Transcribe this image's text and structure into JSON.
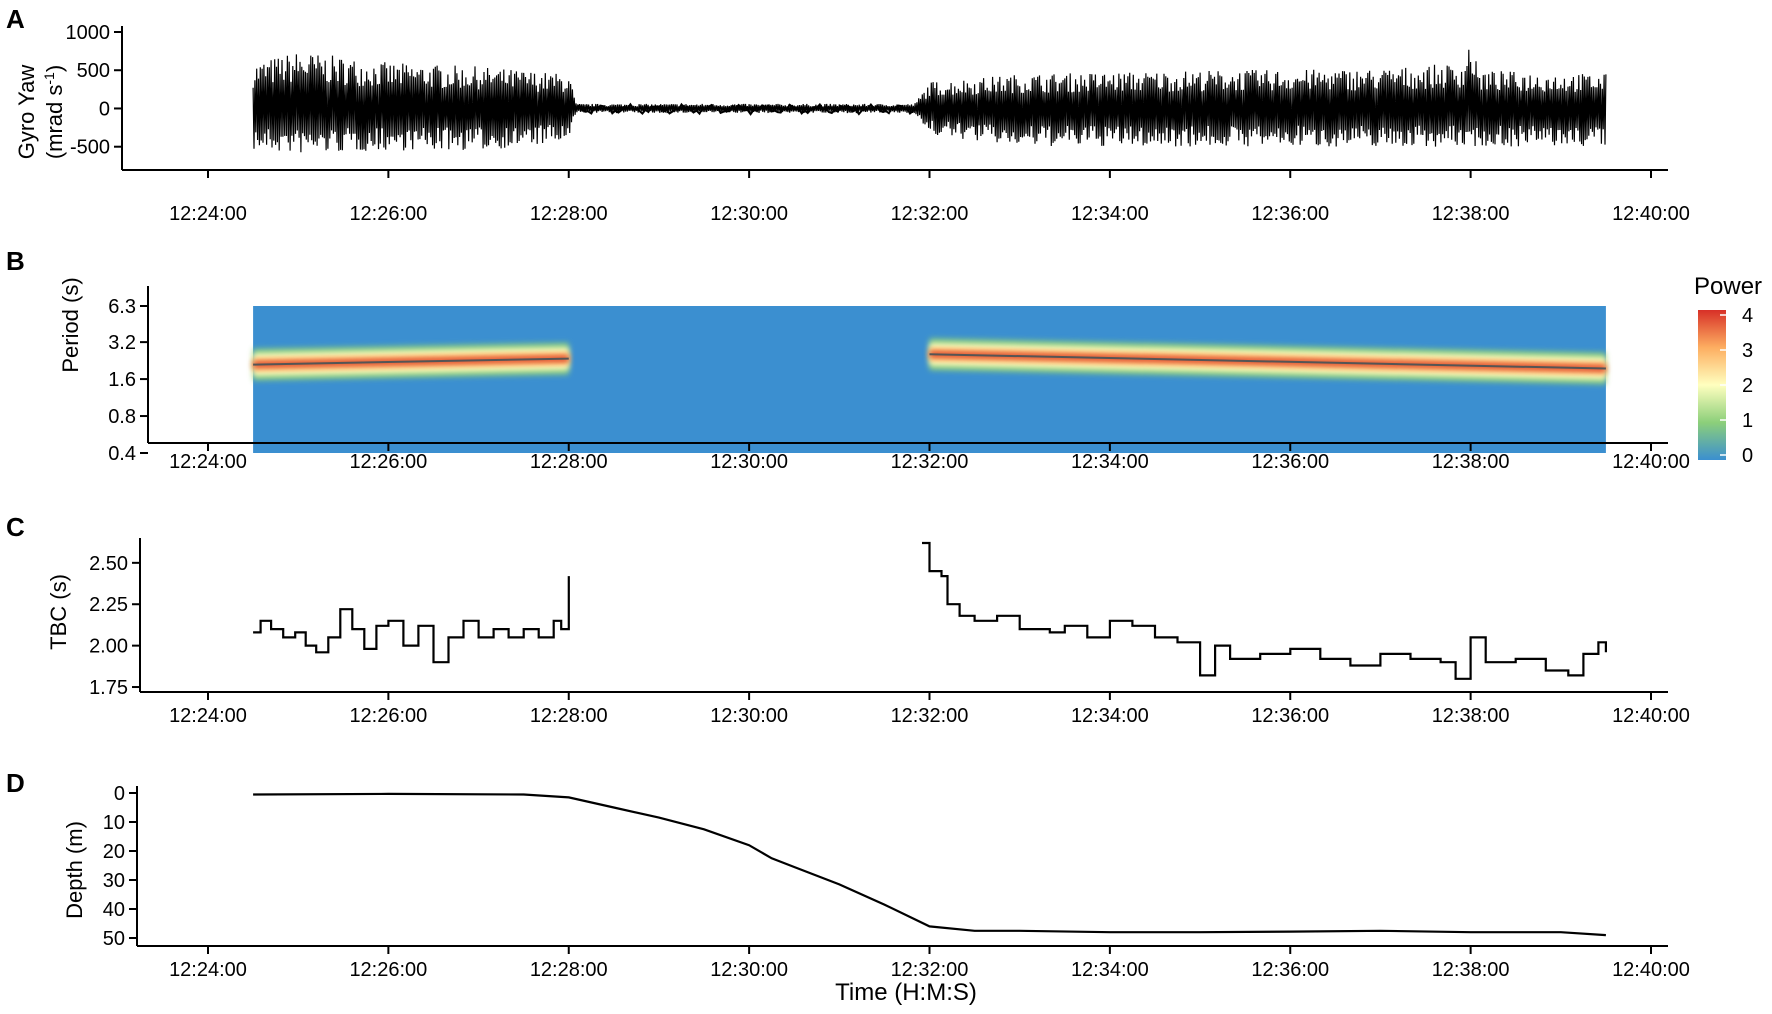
{
  "chart_data": [
    {
      "panel": "A",
      "type": "line",
      "ylabel_line1": "Gyro Yaw",
      "ylabel_line2_base": "(mrad s",
      "ylabel_line2_sup": "-1",
      "ylabel_line2_end": ")",
      "ylim": [
        -700,
        1000
      ],
      "y_ticks": [
        1000,
        500,
        0,
        -500
      ],
      "x_ticks": [
        "12:24:00",
        "12:26:00",
        "12:28:00",
        "12:30:00",
        "12:32:00",
        "12:34:00",
        "12:36:00",
        "12:38:00",
        "12:40:00"
      ],
      "x_range": [
        "12:24:00",
        "12:40:00"
      ],
      "data_start": "12:24:30",
      "data_end": "12:39:30",
      "envelope": [
        {
          "x": "12:24:30",
          "y_min": -550,
          "y_max": 600
        },
        {
          "x": "12:25:00",
          "y_min": -600,
          "y_max": 750
        },
        {
          "x": "12:26:00",
          "y_min": -550,
          "y_max": 600
        },
        {
          "x": "12:27:00",
          "y_min": -550,
          "y_max": 550
        },
        {
          "x": "12:28:00",
          "y_min": -450,
          "y_max": 450
        },
        {
          "x": "12:28:05",
          "y_min": -60,
          "y_max": 60
        },
        {
          "x": "12:31:50",
          "y_min": -60,
          "y_max": 60
        },
        {
          "x": "12:32:00",
          "y_min": -350,
          "y_max": 350
        },
        {
          "x": "12:33:00",
          "y_min": -500,
          "y_max": 450
        },
        {
          "x": "12:35:00",
          "y_min": -500,
          "y_max": 500
        },
        {
          "x": "12:37:00",
          "y_min": -500,
          "y_max": 520
        },
        {
          "x": "12:37:55",
          "y_min": -500,
          "y_max": 600
        },
        {
          "x": "12:38:00",
          "y_min": -500,
          "y_max": 950
        },
        {
          "x": "12:38:05",
          "y_min": -500,
          "y_max": 500
        },
        {
          "x": "12:39:30",
          "y_min": -500,
          "y_max": 450
        }
      ]
    },
    {
      "panel": "B",
      "type": "heatmap",
      "ylabel": "Period (s)",
      "y_scale": "log2",
      "y_ticks": [
        "6.3",
        "3.2",
        "1.6",
        "0.8",
        "0.4"
      ],
      "ylim": [
        0.4,
        6.3
      ],
      "x_ticks": [
        "12:24:00",
        "12:26:00",
        "12:28:00",
        "12:30:00",
        "12:32:00",
        "12:34:00",
        "12:36:00",
        "12:38:00",
        "12:40:00"
      ],
      "x_range": [
        "12:24:00",
        "12:40:00"
      ],
      "data_start": "12:24:30",
      "data_end": "12:39:30",
      "legend_title": "Power",
      "legend_ticks": [
        "4",
        "3",
        "2",
        "1",
        "0"
      ],
      "legend_placement": "right",
      "colorscale": [
        "#3b8fd0",
        "#8ccf7a",
        "#ffffbf",
        "#fdae61",
        "#d73027"
      ],
      "background_color": "#3b8fd0",
      "ridge_segments": [
        {
          "start": "12:24:30",
          "end": "12:28:00",
          "period_start": 2.1,
          "period_end": 2.35
        },
        {
          "start": "12:32:00",
          "end": "12:39:30",
          "period_start": 2.55,
          "period_end": 1.95
        }
      ]
    },
    {
      "panel": "C",
      "type": "line",
      "ylabel": "TBC (s)",
      "y_ticks": [
        "2.50",
        "2.25",
        "2.00",
        "1.75"
      ],
      "ylim": [
        1.72,
        2.65
      ],
      "x_ticks": [
        "12:24:00",
        "12:26:00",
        "12:28:00",
        "12:30:00",
        "12:32:00",
        "12:34:00",
        "12:36:00",
        "12:38:00",
        "12:40:00"
      ],
      "x_range": [
        "12:24:00",
        "12:40:00"
      ],
      "series": [
        {
          "segment": 1,
          "points": [
            [
              "12:24:30",
              2.08
            ],
            [
              "12:24:35",
              2.15
            ],
            [
              "12:24:42",
              2.1
            ],
            [
              "12:24:50",
              2.05
            ],
            [
              "12:24:58",
              2.08
            ],
            [
              "12:25:05",
              2.0
            ],
            [
              "12:25:12",
              1.96
            ],
            [
              "12:25:20",
              2.05
            ],
            [
              "12:25:28",
              2.22
            ],
            [
              "12:25:36",
              2.1
            ],
            [
              "12:25:44",
              1.98
            ],
            [
              "12:25:52",
              2.12
            ],
            [
              "12:26:00",
              2.15
            ],
            [
              "12:26:10",
              2.0
            ],
            [
              "12:26:20",
              2.12
            ],
            [
              "12:26:30",
              1.9
            ],
            [
              "12:26:40",
              2.05
            ],
            [
              "12:26:50",
              2.15
            ],
            [
              "12:27:00",
              2.05
            ],
            [
              "12:27:10",
              2.1
            ],
            [
              "12:27:20",
              2.05
            ],
            [
              "12:27:30",
              2.1
            ],
            [
              "12:27:40",
              2.05
            ],
            [
              "12:27:50",
              2.15
            ],
            [
              "12:27:55",
              2.1
            ],
            [
              "12:28:00",
              2.42
            ]
          ]
        },
        {
          "segment": 2,
          "points": [
            [
              "12:31:55",
              2.62
            ],
            [
              "12:32:00",
              2.45
            ],
            [
              "12:32:08",
              2.42
            ],
            [
              "12:32:12",
              2.25
            ],
            [
              "12:32:20",
              2.18
            ],
            [
              "12:32:30",
              2.15
            ],
            [
              "12:32:45",
              2.18
            ],
            [
              "12:33:00",
              2.1
            ],
            [
              "12:33:20",
              2.08
            ],
            [
              "12:33:30",
              2.12
            ],
            [
              "12:33:45",
              2.05
            ],
            [
              "12:34:00",
              2.15
            ],
            [
              "12:34:15",
              2.12
            ],
            [
              "12:34:30",
              2.05
            ],
            [
              "12:34:45",
              2.02
            ],
            [
              "12:35:00",
              1.82
            ],
            [
              "12:35:10",
              2.0
            ],
            [
              "12:35:20",
              1.92
            ],
            [
              "12:35:40",
              1.95
            ],
            [
              "12:36:00",
              1.98
            ],
            [
              "12:36:20",
              1.92
            ],
            [
              "12:36:40",
              1.88
            ],
            [
              "12:37:00",
              1.95
            ],
            [
              "12:37:20",
              1.92
            ],
            [
              "12:37:40",
              1.9
            ],
            [
              "12:37:50",
              1.8
            ],
            [
              "12:38:00",
              2.05
            ],
            [
              "12:38:10",
              1.9
            ],
            [
              "12:38:30",
              1.92
            ],
            [
              "12:38:50",
              1.85
            ],
            [
              "12:39:05",
              1.82
            ],
            [
              "12:39:15",
              1.95
            ],
            [
              "12:39:25",
              2.02
            ],
            [
              "12:39:30",
              1.96
            ]
          ]
        }
      ]
    },
    {
      "panel": "D",
      "type": "line",
      "ylabel": "Depth (m)",
      "xlabel": "Time (H:M:S)",
      "y_ticks": [
        "0",
        "10",
        "20",
        "30",
        "40",
        "50"
      ],
      "ylim": [
        0,
        50
      ],
      "y_reversed": true,
      "x_ticks": [
        "12:24:00",
        "12:26:00",
        "12:28:00",
        "12:30:00",
        "12:32:00",
        "12:34:00",
        "12:36:00",
        "12:38:00",
        "12:40:00"
      ],
      "x_range": [
        "12:24:00",
        "12:40:00"
      ],
      "series": [
        {
          "points": [
            [
              "12:24:30",
              0.5
            ],
            [
              "12:26:00",
              0.3
            ],
            [
              "12:27:30",
              0.5
            ],
            [
              "12:28:00",
              1.5
            ],
            [
              "12:28:30",
              5.0
            ],
            [
              "12:29:00",
              8.5
            ],
            [
              "12:29:30",
              12.5
            ],
            [
              "12:30:00",
              18.0
            ],
            [
              "12:30:15",
              22.5
            ],
            [
              "12:30:30",
              25.5
            ],
            [
              "12:31:00",
              31.5
            ],
            [
              "12:31:30",
              38.5
            ],
            [
              "12:32:00",
              46.0
            ],
            [
              "12:32:30",
              47.5
            ],
            [
              "12:33:00",
              47.5
            ],
            [
              "12:34:00",
              48.0
            ],
            [
              "12:35:00",
              48.0
            ],
            [
              "12:36:00",
              47.8
            ],
            [
              "12:37:00",
              47.5
            ],
            [
              "12:38:00",
              48.0
            ],
            [
              "12:39:00",
              48.0
            ],
            [
              "12:39:30",
              49.0
            ]
          ]
        }
      ]
    }
  ]
}
